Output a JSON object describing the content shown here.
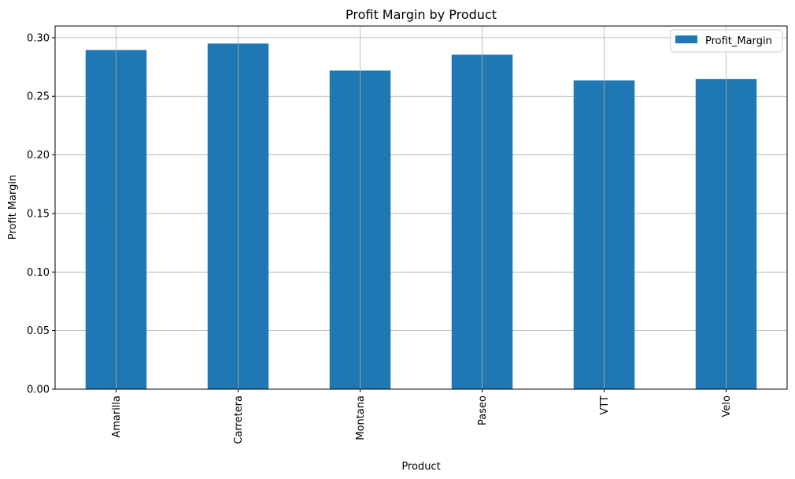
{
  "chart_data": {
    "type": "bar",
    "title": "Profit Margin by Product",
    "xlabel": "Product",
    "ylabel": "Profit Margin",
    "categories": [
      "Amarilla",
      "Carretera",
      "Montana",
      "Paseo",
      "VTT",
      "Velo"
    ],
    "series": [
      {
        "name": "Profit_Margin",
        "color": "#1f77b4",
        "values": [
          0.2895,
          0.295,
          0.272,
          0.2855,
          0.2635,
          0.2648
        ]
      }
    ],
    "ylim": [
      0,
      0.31
    ],
    "yticks": [
      "0.00",
      "0.05",
      "0.10",
      "0.15",
      "0.20",
      "0.25",
      "0.30"
    ],
    "grid": true,
    "legend": "top-right"
  }
}
